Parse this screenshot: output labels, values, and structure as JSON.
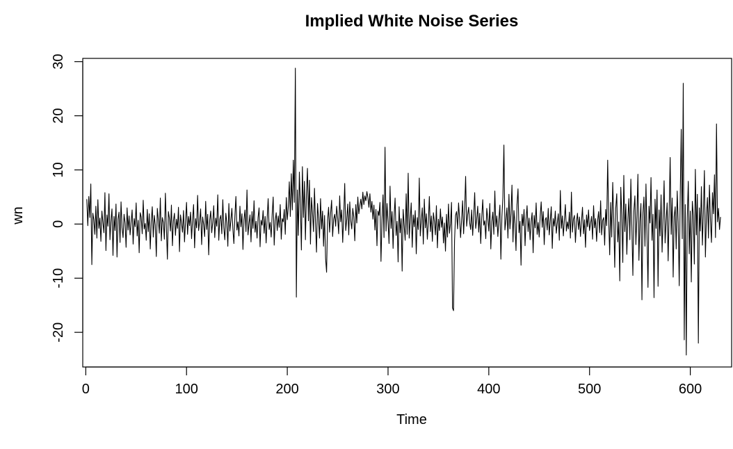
{
  "chart_data": {
    "type": "line",
    "title": "Implied White Noise Series",
    "xlabel": "Time",
    "ylabel": "wn",
    "xlim": [
      -3,
      641
    ],
    "ylim": [
      -26.4,
      30.6
    ],
    "xticks": [
      0,
      100,
      200,
      300,
      400,
      500,
      600
    ],
    "xtick_labels": [
      "0",
      "100",
      "200",
      "300",
      "400",
      "500",
      "600"
    ],
    "yticks": [
      -20,
      -10,
      0,
      10,
      20,
      30
    ],
    "ytick_labels": [
      "-20",
      "-10",
      "0",
      "10",
      "20",
      "30"
    ],
    "grid": false,
    "legend": "none",
    "line_color": "#000000",
    "series": [
      {
        "values": [
          4.6,
          -0.3,
          5.1,
          1.2,
          7.4,
          -7.5,
          2.0,
          0.8,
          -1.9,
          3.3,
          -2.6,
          4.5,
          -0.8,
          1.1,
          -3.2,
          2.4,
          0.3,
          -1.6,
          5.8,
          -4.9,
          1.7,
          -0.4,
          5.6,
          -2.9,
          0.6,
          2.8,
          -5.8,
          1.4,
          -1.2,
          3.7,
          -6.1,
          0.9,
          2.2,
          -3.4,
          4.1,
          -0.7,
          -2.5,
          1.8,
          0.2,
          -4.3,
          3.0,
          -1.1,
          1.5,
          -2.0,
          0.4,
          2.6,
          -3.7,
          1.0,
          -0.5,
          3.9,
          -2.2,
          0.7,
          -5.3,
          2.1,
          1.3,
          -1.8,
          4.4,
          -0.9,
          0.1,
          -3.0,
          2.7,
          -1.4,
          1.9,
          -4.6,
          0.5,
          3.2,
          -2.4,
          1.6,
          -0.2,
          -6.0,
          2.9,
          0.8,
          -1.7,
          4.8,
          -3.1,
          1.2,
          0.3,
          -2.8,
          5.7,
          -0.6,
          -6.5,
          2.3,
          1.1,
          -1.3,
          3.5,
          -4.0,
          0.6,
          2.0,
          -2.1,
          0.9,
          -0.8,
          3.1,
          -5.1,
          1.7,
          0.2,
          -1.5,
          2.5,
          -3.3,
          0.4,
          4.0,
          -1.9,
          1.4,
          -0.3,
          2.2,
          -2.7,
          0.8,
          3.6,
          -4.4,
          1.0,
          -0.7,
          5.3,
          -1.2,
          0.5,
          2.8,
          -3.8,
          1.3,
          -0.1,
          -2.3,
          4.2,
          -1.0,
          1.8,
          -5.7,
          0.7,
          2.4,
          -1.6,
          0.3,
          3.4,
          -2.5,
          1.1,
          -0.4,
          5.4,
          -3.0,
          0.9,
          1.6,
          -1.8,
          4.5,
          -0.6,
          -2.9,
          2.0,
          0.2,
          -4.1,
          3.8,
          -1.3,
          0.6,
          2.9,
          -0.9,
          -3.6,
          1.5,
          5.1,
          -1.1,
          0.4,
          -2.2,
          3.3,
          -0.5,
          1.9,
          -4.7,
          0.8,
          2.6,
          -1.4,
          6.3,
          -2.0,
          0.1,
          1.7,
          -3.3,
          2.3,
          -0.8,
          4.3,
          -1.5,
          0.5,
          -2.6,
          1.2,
          3.0,
          -4.2,
          0.7,
          -0.2,
          2.5,
          -1.7,
          1.4,
          -3.5,
          0.9,
          4.7,
          -1.0,
          0.3,
          -2.4,
          1.8,
          5.0,
          -3.9,
          0.6,
          2.1,
          -1.2,
          1.5,
          -0.6,
          3.6,
          -2.8,
          1.0,
          0.4,
          2.7,
          -1.9,
          4.9,
          0.8,
          3.2,
          7.8,
          1.4,
          9.3,
          2.6,
          11.8,
          4.0,
          28.8,
          -13.5,
          6.3,
          -2.1,
          9.6,
          3.5,
          -4.8,
          10.6,
          1.2,
          7.9,
          -2.9,
          5.4,
          10.3,
          0.6,
          8.1,
          -3.7,
          4.9,
          2.2,
          -1.4,
          6.6,
          0.3,
          -5.2,
          3.8,
          1.0,
          -2.6,
          4.7,
          -0.9,
          2.4,
          -4.1,
          1.6,
          -6.3,
          -8.9,
          0.7,
          3.1,
          -1.5,
          2.0,
          4.4,
          -2.3,
          0.9,
          1.8,
          -0.4,
          3.3,
          1.1,
          -1.8,
          5.2,
          0.4,
          2.6,
          -3.4,
          1.5,
          7.5,
          -1.2,
          0.8,
          3.7,
          -2.0,
          4.1,
          0.6,
          -0.9,
          2.9,
          1.3,
          -3.1,
          3.6,
          0.2,
          5.0,
          1.9,
          3.4,
          4.6,
          2.8,
          5.9,
          3.6,
          5.2,
          4.3,
          6.0,
          4.9,
          3.1,
          5.6,
          2.2,
          4.2,
          0.9,
          3.5,
          -1.1,
          2.7,
          -4.0,
          2.4,
          1.6,
          4.0,
          -6.9,
          0.7,
          5.4,
          -2.5,
          14.2,
          -1.3,
          3.8,
          0.4,
          -3.6,
          7.0,
          -0.8,
          2.3,
          -4.5,
          1.4,
          4.8,
          -2.1,
          0.5,
          -7.0,
          3.2,
          -1.6,
          1.0,
          -8.7,
          2.7,
          -0.3,
          -3.0,
          5.6,
          -1.9,
          9.4,
          -2.6,
          0.8,
          3.9,
          -4.3,
          1.7,
          -0.5,
          2.5,
          -5.5,
          1.2,
          -1.0,
          8.5,
          -2.2,
          0.6,
          3.0,
          -3.7,
          4.6,
          -0.7,
          1.9,
          -2.8,
          0.3,
          5.1,
          -1.4,
          1.5,
          -3.2,
          2.1,
          0.5,
          -2.0,
          3.4,
          -4.4,
          0.9,
          -1.2,
          2.8,
          -0.6,
          1.3,
          -3.5,
          0.2,
          -5.0,
          1.8,
          -2.4,
          3.7,
          -1.7,
          0.1,
          4.0,
          -15.5,
          -16.0,
          -3.1,
          1.6,
          2.3,
          -0.9,
          3.9,
          1.1,
          -2.5,
          0.7,
          4.3,
          -1.8,
          2.4,
          8.8,
          -0.4,
          1.7,
          3.1,
          0.3,
          -1.0,
          2.6,
          -2.1,
          1.4,
          5.8,
          -0.8,
          0.9,
          3.3,
          -1.5,
          2.0,
          -3.6,
          1.2,
          4.5,
          -0.2,
          0.6,
          -2.7,
          2.9,
          1.0,
          -1.3,
          3.8,
          -4.6,
          0.4,
          2.2,
          -1.9,
          6.1,
          -0.5,
          1.5,
          -2.3,
          0.8,
          3.5,
          -6.5,
          1.3,
          4.9,
          14.6,
          -1.1,
          0.7,
          3.0,
          -2.6,
          5.5,
          -0.9,
          1.9,
          7.2,
          -3.3,
          2.5,
          0.1,
          -4.9,
          3.6,
          6.5,
          -1.6,
          0.5,
          -7.6,
          1.8,
          -0.3,
          2.7,
          -4.0,
          0.9,
          3.4,
          -1.4,
          1.1,
          -2.9,
          0.4,
          2.1,
          -5.3,
          1.6,
          -0.7,
          3.9,
          -1.9,
          0.3,
          -2.4,
          1.4,
          4.1,
          -0.6,
          2.3,
          -3.8,
          0.8,
          1.2,
          -1.1,
          2.9,
          -2.0,
          0.6,
          3.2,
          -4.5,
          1.0,
          -0.4,
          2.4,
          -1.7,
          0.2,
          1.9,
          -3.0,
          6.2,
          -0.8,
          1.5,
          -2.2,
          0.7,
          3.6,
          -1.3,
          0.4,
          -0.9,
          2.2,
          -2.6,
          5.9,
          -1.5,
          0.9,
          1.6,
          -3.4,
          0.3,
          2.0,
          -1.0,
          1.3,
          -2.3,
          0.5,
          3.1,
          -1.8,
          0.8,
          -4.3,
          1.7,
          -0.5,
          2.6,
          -1.2,
          0.1,
          1.4,
          -2.8,
          3.4,
          -0.7,
          1.0,
          -3.2,
          0.6,
          2.3,
          -1.6,
          4.3,
          -2.0,
          0.7,
          1.2,
          -3.9,
          2.7,
          -0.3,
          11.8,
          0.9,
          -5.7,
          4.0,
          -2.4,
          7.7,
          1.1,
          -8.0,
          2.9,
          5.6,
          -3.3,
          0.4,
          -10.5,
          6.8,
          1.6,
          -7.1,
          9.0,
          -1.4,
          3.7,
          -5.6,
          0.8,
          4.7,
          -2.9,
          8.3,
          -0.6,
          -9.5,
          2.5,
          5.2,
          -3.8,
          1.3,
          9.2,
          -6.7,
          0.5,
          3.8,
          -14.0,
          2.1,
          5.0,
          -4.1,
          7.4,
          -1.7,
          -11.7,
          3.3,
          0.2,
          8.6,
          -3.0,
          1.8,
          -13.6,
          4.6,
          -0.8,
          6.3,
          -11.5,
          2.6,
          -2.2,
          5.4,
          -5.2,
          1.0,
          8.0,
          -3.5,
          0.6,
          3.9,
          -6.8,
          2.0,
          12.3,
          -1.9,
          4.8,
          -9.8,
          1.4,
          3.2,
          -4.6,
          6.1,
          0.3,
          -11.4,
          5.1,
          17.5,
          -2.7,
          26.0,
          -21.4,
          3.6,
          -24.2,
          1.2,
          7.9,
          -5.5,
          2.4,
          -10.7,
          4.2,
          1.6,
          -7.4,
          10.1,
          -2.0,
          5.5,
          -22.0,
          3.0,
          -1.3,
          6.9,
          -3.9,
          2.2,
          9.9,
          -6.1,
          1.5,
          4.9,
          -2.6,
          7.2,
          0.7,
          -3.4,
          5.8,
          1.9,
          9.1,
          -2.5,
          18.5,
          0.4,
          2.9,
          -1.0,
          1.3
        ]
      }
    ]
  }
}
